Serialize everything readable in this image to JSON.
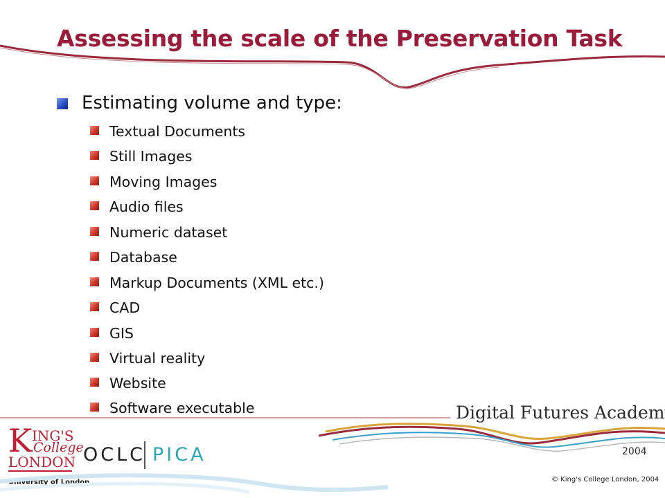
{
  "slide": {
    "title": "Assessing the scale of the Preservation Task",
    "level1": "Estimating volume and type:",
    "items": [
      "Textual Documents",
      "Still Images",
      "Moving Images",
      "Audio files",
      "Numeric dataset",
      "Database",
      "Markup Documents (XML etc.)",
      "CAD",
      "GIS",
      "Virtual reality",
      "Website",
      "Software executable"
    ]
  },
  "footer": {
    "kings": {
      "k": "K",
      "ings": "ING'S",
      "college": "College",
      "london": "LONDON",
      "university": "University of London"
    },
    "oclc": "OCLC",
    "pica": "PICA",
    "dfa_title": "Digital Futures Academy",
    "dfa_year": "2004",
    "copyright": "© King's College London, 2004"
  },
  "colors": {
    "title": "#9b1b3a",
    "bullet_level1": "#2a4fc8",
    "bullet_level2": "#d0362a",
    "pica": "#2aa8b8"
  },
  "icons": {
    "level1_bullet": "blue-square-bullet-icon",
    "level2_bullet": "red-square-bullet-icon"
  }
}
